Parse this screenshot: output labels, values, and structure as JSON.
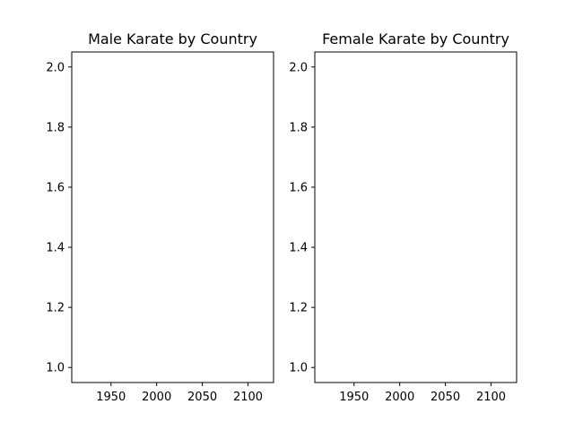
{
  "chart_data": [
    {
      "type": "line",
      "title": "Male Karate by Country",
      "xlabel": "",
      "ylabel": "",
      "xlim": [
        1907,
        2128
      ],
      "ylim": [
        0.95,
        2.05
      ],
      "xticks": [
        1950,
        2000,
        2050,
        2100
      ],
      "xtick_labels": [
        "1950",
        "2000",
        "2050",
        "2100"
      ],
      "yticks": [
        1.0,
        1.2,
        1.4,
        1.6,
        1.8,
        2.0
      ],
      "ytick_labels": [
        "1.0",
        "1.2",
        "1.4",
        "1.6",
        "1.8",
        "2.0"
      ],
      "series": [],
      "grid": false,
      "legend": "none"
    },
    {
      "type": "line",
      "title": "Female Karate by Country",
      "xlabel": "",
      "ylabel": "",
      "xlim": [
        1907,
        2128
      ],
      "ylim": [
        0.95,
        2.05
      ],
      "xticks": [
        1950,
        2000,
        2050,
        2100
      ],
      "xtick_labels": [
        "1950",
        "2000",
        "2050",
        "2100"
      ],
      "yticks": [
        1.0,
        1.2,
        1.4,
        1.6,
        1.8,
        2.0
      ],
      "ytick_labels": [
        "1.0",
        "1.2",
        "1.4",
        "1.6",
        "1.8",
        "2.0"
      ],
      "series": [],
      "grid": false,
      "legend": "none"
    }
  ]
}
